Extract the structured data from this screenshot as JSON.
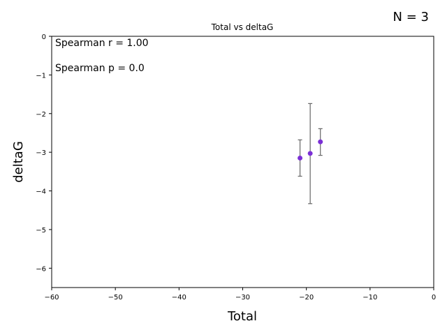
{
  "chart_data": {
    "type": "scatter",
    "title": "Total vs deltaG",
    "xlabel": "Total",
    "ylabel": "deltaG",
    "xlim": [
      -60,
      0
    ],
    "ylim": [
      -6.5,
      0
    ],
    "xticks": [
      -60,
      -50,
      -40,
      -30,
      -20,
      -10,
      0
    ],
    "yticks": [
      0,
      -1,
      -2,
      -3,
      -4,
      -5,
      -6
    ],
    "xtick_labels": [
      "−60",
      "−50",
      "−40",
      "−30",
      "−20",
      "−10",
      "0"
    ],
    "ytick_labels": [
      "0",
      "−1",
      "−2",
      "−3",
      "−4",
      "−5",
      "−6"
    ],
    "grid": false,
    "point_color": "#7b2fd6",
    "errorbar_color": "#666666",
    "points": [
      {
        "x": -21.0,
        "y": -3.15,
        "yerr_low": -3.62,
        "yerr_high": -2.68
      },
      {
        "x": -19.4,
        "y": -3.03,
        "yerr_low": -4.33,
        "yerr_high": -1.74
      },
      {
        "x": -17.8,
        "y": -2.73,
        "yerr_low": -3.08,
        "yerr_high": -2.39
      }
    ],
    "annotations": {
      "spearman_r": "Spearman r = 1.00",
      "spearman_p": "Spearman p = 0.0",
      "n": "N = 3"
    }
  }
}
